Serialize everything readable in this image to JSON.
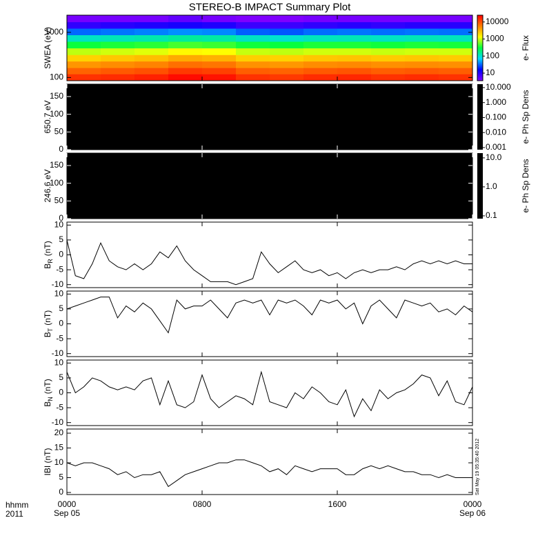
{
  "figure": {
    "title": "STEREO-B IMPACT Summary Plot",
    "xlim": [
      0,
      24
    ],
    "xticks": [
      {
        "value": 0,
        "label": "0000"
      },
      {
        "value": 8,
        "label": "0800"
      },
      {
        "value": 16,
        "label": "1600"
      },
      {
        "value": 24,
        "label": "0000"
      }
    ],
    "xtick_dates": [
      {
        "value": 0,
        "label": "Sep 05"
      },
      {
        "value": 24,
        "label": "Sep 06"
      }
    ],
    "row_label": "hhmm",
    "year_label": "2011",
    "timestamp": "Sat May 19 05:35:40 2012"
  },
  "chart_data": [
    {
      "type": "heatmap",
      "ylabel": "SWEA (eV)",
      "log": true,
      "ylim": [
        85,
        2400
      ],
      "yticks": [
        100,
        1000
      ],
      "x_bins": [
        0,
        2,
        4,
        6,
        8,
        10,
        12,
        14,
        16,
        18,
        20,
        22,
        24
      ],
      "y_bins": [
        85,
        120,
        165,
        230,
        320,
        450,
        630,
        880,
        1230,
        1710,
        2400
      ],
      "z": [
        [
          14000,
          8000,
          4500,
          2200,
          900,
          320,
          110,
          32,
          9,
          4
        ],
        [
          15000,
          9000,
          5000,
          2500,
          1000,
          350,
          120,
          35,
          10,
          4
        ],
        [
          17000,
          10000,
          5500,
          2800,
          1100,
          380,
          130,
          38,
          11,
          4
        ],
        [
          22000,
          13000,
          7000,
          3500,
          1400,
          450,
          150,
          42,
          12,
          5
        ],
        [
          20000,
          12000,
          6500,
          3200,
          1300,
          420,
          140,
          40,
          11,
          4
        ],
        [
          14000,
          8500,
          4700,
          2300,
          950,
          330,
          110,
          30,
          8,
          3
        ],
        [
          13000,
          8000,
          4400,
          2200,
          900,
          310,
          100,
          28,
          8,
          3
        ],
        [
          15000,
          9000,
          5000,
          2500,
          1000,
          350,
          115,
          33,
          9,
          4
        ],
        [
          16000,
          9500,
          5200,
          2600,
          1000,
          350,
          120,
          35,
          10,
          4
        ],
        [
          14000,
          8500,
          4800,
          2400,
          950,
          330,
          110,
          33,
          9,
          4
        ],
        [
          15000,
          9000,
          5000,
          2500,
          1000,
          350,
          120,
          35,
          10,
          4
        ],
        [
          14000,
          8500,
          4800,
          2400,
          1000,
          340,
          115,
          34,
          10,
          4
        ]
      ],
      "colorbar": {
        "label": "e- Flux",
        "log": true,
        "zlim": [
          3.6,
          25000
        ],
        "ticks": [
          10,
          100,
          1000,
          10000
        ],
        "colormap": [
          "#8000ff",
          "#0000ff",
          "#00d8ff",
          "#00ff40",
          "#ffff00",
          "#ff8000",
          "#ff0000"
        ]
      }
    },
    {
      "type": "blank",
      "ylabel": "650.7 eV",
      "ylim": [
        0,
        185
      ],
      "yticks": [
        0,
        50,
        100,
        150
      ],
      "color": "#000000",
      "colorbar": {
        "label": "e- Ph Sp Dens",
        "log": true,
        "zlim": [
          0.00072,
          17
        ],
        "color": "#000000",
        "ticks": [
          {
            "value": 10,
            "label": "10.000"
          },
          {
            "value": 1,
            "label": "1.000"
          },
          {
            "value": 0.1,
            "label": "0.100"
          },
          {
            "value": 0.01,
            "label": "0.010"
          },
          0.001
        ]
      }
    },
    {
      "type": "blank",
      "ylabel": "246.6 eV",
      "ylim": [
        0,
        185
      ],
      "yticks": [
        0,
        50,
        100,
        150
      ],
      "color": "#000000",
      "colorbar": {
        "label": "e- Ph Sp Dens",
        "log": true,
        "zlim": [
          0.08,
          14.6
        ],
        "color": "#000000",
        "ticks": [
          {
            "value": 10,
            "label": "10.0"
          },
          {
            "value": 1,
            "label": "1.0"
          },
          0.1
        ]
      }
    },
    {
      "type": "line",
      "ylabel": "B",
      "ylabel_sub": "R",
      "ylabel_unit": "(nT)",
      "ylim": [
        -11,
        11
      ],
      "yticks": [
        -10,
        -5,
        0,
        5,
        10
      ],
      "color": "#000000",
      "x": [
        0,
        0.5,
        1,
        1.5,
        2,
        2.5,
        3,
        3.5,
        4,
        4.5,
        5,
        5.5,
        6,
        6.5,
        7,
        7.5,
        8,
        8.5,
        9,
        9.5,
        10,
        10.5,
        11,
        11.5,
        12,
        12.5,
        13,
        13.5,
        14,
        14.5,
        15,
        15.5,
        16,
        16.5,
        17,
        17.5,
        18,
        18.5,
        19,
        19.5,
        20,
        20.5,
        21,
        21.5,
        22,
        22.5,
        23,
        23.5,
        24
      ],
      "values": [
        5,
        -7,
        -8,
        -3,
        4,
        -2,
        -4,
        -5,
        -3,
        -5,
        -3,
        1,
        -1,
        3,
        -2,
        -5,
        -7,
        -9,
        -9,
        -9,
        -10,
        -9,
        -8,
        1,
        -3,
        -6,
        -4,
        -2,
        -5,
        -6,
        -5,
        -7,
        -6,
        -8,
        -6,
        -5,
        -6,
        -5,
        -5,
        -4,
        -5,
        -3,
        -2,
        -3,
        -2,
        -3,
        -2,
        -3,
        -3
      ]
    },
    {
      "type": "line",
      "ylabel": "B",
      "ylabel_sub": "T",
      "ylabel_unit": "(nT)",
      "ylim": [
        -11,
        11
      ],
      "yticks": [
        -10,
        -5,
        0,
        5,
        10
      ],
      "color": "#000000",
      "x": [
        0,
        0.5,
        1,
        1.5,
        2,
        2.5,
        3,
        3.5,
        4,
        4.5,
        5,
        5.5,
        6,
        6.5,
        7,
        7.5,
        8,
        8.5,
        9,
        9.5,
        10,
        10.5,
        11,
        11.5,
        12,
        12.5,
        13,
        13.5,
        14,
        14.5,
        15,
        15.5,
        16,
        16.5,
        17,
        17.5,
        18,
        18.5,
        19,
        19.5,
        20,
        20.5,
        21,
        21.5,
        22,
        22.5,
        23,
        23.5,
        24
      ],
      "values": [
        5,
        6,
        7,
        8,
        9,
        9,
        2,
        6,
        4,
        7,
        5,
        1,
        -3,
        8,
        5,
        6,
        6,
        8,
        5,
        2,
        7,
        8,
        7,
        8,
        3,
        8,
        7,
        8,
        6,
        3,
        8,
        7,
        8,
        5,
        7,
        0,
        6,
        8,
        5,
        2,
        8,
        7,
        6,
        7,
        4,
        5,
        3,
        6,
        4
      ]
    },
    {
      "type": "line",
      "ylabel": "B",
      "ylabel_sub": "N",
      "ylabel_unit": "(nT)",
      "ylim": [
        -11,
        11
      ],
      "yticks": [
        -10,
        -5,
        0,
        5,
        10
      ],
      "color": "#000000",
      "x": [
        0,
        0.5,
        1,
        1.5,
        2,
        2.5,
        3,
        3.5,
        4,
        4.5,
        5,
        5.5,
        6,
        6.5,
        7,
        7.5,
        8,
        8.5,
        9,
        9.5,
        10,
        10.5,
        11,
        11.5,
        12,
        12.5,
        13,
        13.5,
        14,
        14.5,
        15,
        15.5,
        16,
        16.5,
        17,
        17.5,
        18,
        18.5,
        19,
        19.5,
        20,
        20.5,
        21,
        21.5,
        22,
        22.5,
        23,
        23.5,
        24
      ],
      "values": [
        7,
        0,
        2,
        5,
        4,
        2,
        1,
        2,
        1,
        4,
        5,
        -4,
        4,
        -4,
        -5,
        -3,
        6,
        -2,
        -5,
        -3,
        -1,
        -2,
        -4,
        7,
        -3,
        -4,
        -5,
        0,
        -2,
        2,
        0,
        -3,
        -4,
        1,
        -8,
        -2,
        -6,
        1,
        -2,
        0,
        1,
        3,
        6,
        5,
        -1,
        4,
        -3,
        -4,
        2
      ]
    },
    {
      "type": "line",
      "ylabel": "IBI (nT)",
      "ylim": [
        -0.7,
        21.4
      ],
      "yticks": [
        0,
        5,
        10,
        15,
        20
      ],
      "color": "#000000",
      "x": [
        0,
        0.5,
        1,
        1.5,
        2,
        2.5,
        3,
        3.5,
        4,
        4.5,
        5,
        5.5,
        6,
        6.5,
        7,
        7.5,
        8,
        8.5,
        9,
        9.5,
        10,
        10.5,
        11,
        11.5,
        12,
        12.5,
        13,
        13.5,
        14,
        14.5,
        15,
        15.5,
        16,
        16.5,
        17,
        17.5,
        18,
        18.5,
        19,
        19.5,
        20,
        20.5,
        21,
        21.5,
        22,
        22.5,
        23,
        23.5,
        24
      ],
      "values": [
        10,
        9,
        10,
        10,
        9,
        8,
        6,
        7,
        5,
        6,
        6,
        7,
        2,
        4,
        6,
        7,
        8,
        9,
        10,
        10,
        11,
        11,
        10,
        9,
        7,
        8,
        6,
        9,
        8,
        7,
        8,
        8,
        8,
        6,
        6,
        8,
        9,
        8,
        9,
        8,
        7,
        7,
        6,
        6,
        5,
        6,
        5,
        5,
        5
      ]
    }
  ]
}
